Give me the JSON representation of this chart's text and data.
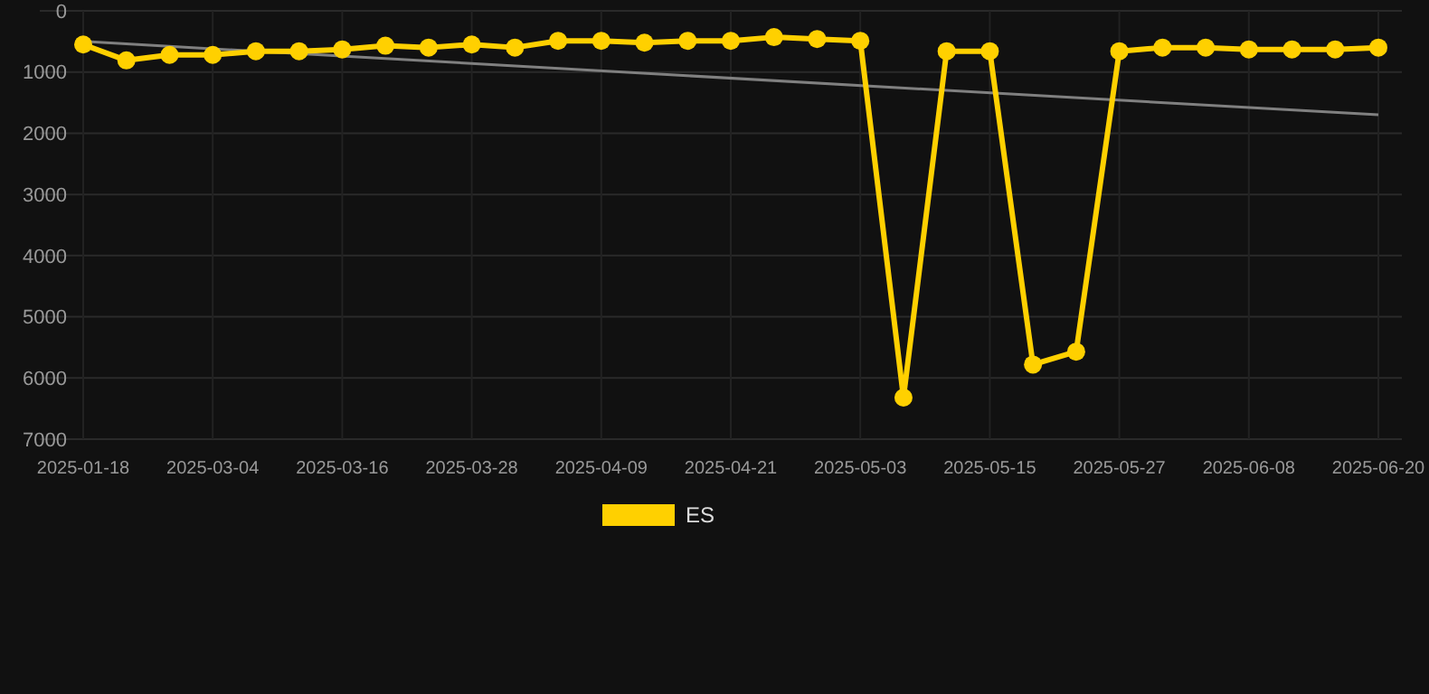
{
  "chart_data": {
    "type": "line",
    "categories": [
      "2025-01-18",
      null,
      null,
      "2025-03-04",
      null,
      null,
      "2025-03-16",
      null,
      null,
      "2025-03-28",
      null,
      null,
      "2025-04-09",
      null,
      null,
      "2025-04-21",
      null,
      null,
      "2025-05-03",
      null,
      null,
      "2025-05-15",
      null,
      null,
      "2025-05-27",
      null,
      null,
      "2025-06-08",
      null,
      null,
      "2025-06-20"
    ],
    "series": [
      {
        "name": "ES",
        "color": "#ffd000",
        "marker": "circle",
        "values": [
          550,
          810,
          720,
          720,
          660,
          660,
          630,
          570,
          600,
          550,
          600,
          490,
          490,
          520,
          490,
          490,
          430,
          460,
          490,
          6320,
          660,
          660,
          5780,
          5570,
          660,
          600,
          600,
          630,
          630,
          630,
          600
        ]
      },
      {
        "type": "line",
        "color": "#808080",
        "marker": "none",
        "values": [
          500,
          null,
          null,
          null,
          null,
          null,
          null,
          null,
          null,
          null,
          null,
          null,
          null,
          null,
          null,
          null,
          null,
          null,
          null,
          null,
          null,
          null,
          null,
          null,
          null,
          null,
          null,
          null,
          null,
          null,
          1700
        ]
      }
    ],
    "ylim": [
      7000,
      0
    ],
    "yticks": [
      0,
      1000,
      2000,
      3000,
      4000,
      5000,
      6000,
      7000
    ],
    "grid": true,
    "legend": "bottom"
  }
}
